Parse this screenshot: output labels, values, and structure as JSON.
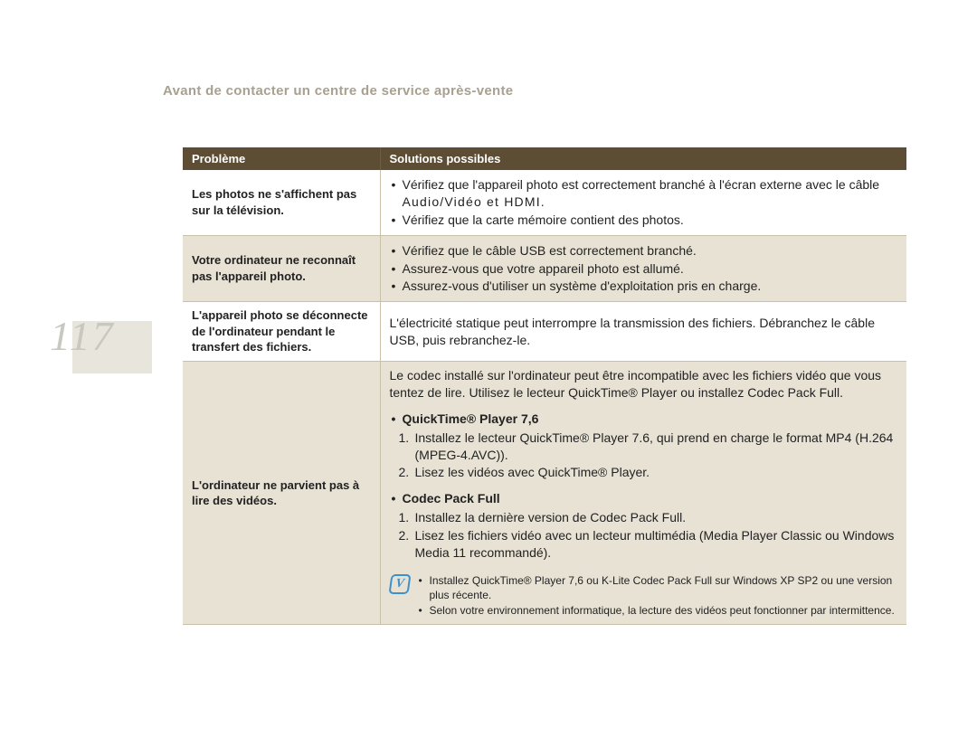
{
  "page_number": "117",
  "title": "Avant de contacter un centre de service après-vente",
  "colors": {
    "title_color": "#a8a090",
    "header_bg": "#5e4d35",
    "header_text": "#ffffff",
    "row_alt_bg": "#e8e2d5",
    "border": "#c9c0a9",
    "note_icon": "#3d90c9",
    "page_num_color": "#c8c8c0",
    "left_stripe": "#e8e5dc"
  },
  "table": {
    "headers": [
      "Problème",
      "Solutions possibles"
    ],
    "rows": [
      {
        "problem": "Les photos ne s'affichent pas sur la télévision.",
        "alt": false,
        "bullets": [
          {
            "pre": "Vérifiez que l'appareil photo est correctement branché à l'écran externe avec le câble ",
            "spaced": "Audio/Vidéo et HDMI",
            "post": "."
          },
          {
            "text": "Vérifiez que la carte mémoire contient des photos."
          }
        ]
      },
      {
        "problem": "Votre ordinateur ne reconnaît pas l'appareil photo.",
        "alt": true,
        "bullets": [
          {
            "text": "Vérifiez que le câble USB est correctement branché."
          },
          {
            "text": "Assurez-vous que votre appareil photo est allumé."
          },
          {
            "text": "Assurez-vous d'utiliser un système d'exploitation pris en charge."
          }
        ]
      },
      {
        "problem": "L'appareil photo se déconnecte de l'ordinateur pendant le transfert des fichiers.",
        "alt": false,
        "plain": "L'électricité statique peut interrompre la transmission des fichiers. Débranchez le câble USB, puis rebranchez-le."
      },
      {
        "problem": "L'ordinateur ne parvient pas à lire des vidéos.",
        "alt": true,
        "intro": "Le codec installé sur l'ordinateur peut être incompatible avec les fichiers vidéo que vous tentez de lire. Utilisez le lecteur QuickTime® Player ou installez Codec Pack Full.",
        "sections": [
          {
            "heading": "QuickTime® Player 7,6",
            "steps": [
              "Installez le lecteur QuickTime® Player 7.6, qui prend en charge le format MP4 (H.264 (MPEG-4.AVC)).",
              "Lisez les vidéos avec QuickTime® Player."
            ]
          },
          {
            "heading": "Codec Pack Full",
            "steps": [
              "Installez la dernière version de Codec Pack Full.",
              "Lisez les fichiers vidéo avec un lecteur multimédia (Media Player Classic ou Windows Media 11 recommandé)."
            ]
          }
        ],
        "notes": [
          "Installez QuickTime® Player 7,6 ou K-Lite Codec Pack Full sur Windows XP SP2 ou une version plus récente.",
          "Selon votre environnement informatique, la lecture des vidéos peut fonctionner par intermittence."
        ]
      }
    ]
  }
}
